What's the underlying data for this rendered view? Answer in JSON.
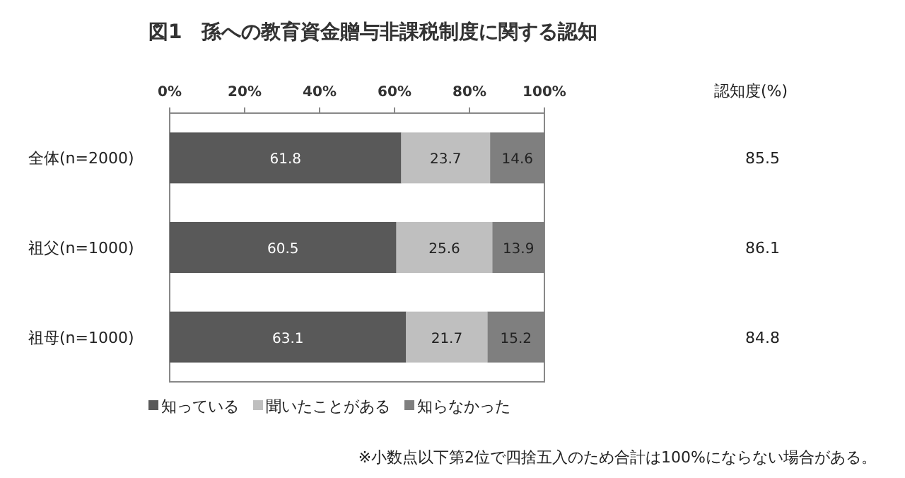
{
  "chart_data": {
    "type": "bar",
    "orientation": "horizontal",
    "stacked": true,
    "title": "図1　孫への教育資金贈与非課税制度に関する認知",
    "categories": [
      "全体(n=2000)",
      "祖父(n=1000)",
      "祖母(n=1000)"
    ],
    "series": [
      {
        "name": "知っている",
        "color": "#595959",
        "values": [
          61.8,
          60.5,
          63.1
        ]
      },
      {
        "name": "聞いたことがある",
        "color": "#bfbfbf",
        "values": [
          23.7,
          25.6,
          21.7
        ]
      },
      {
        "name": "知らなかった",
        "color": "#7f7f7f",
        "values": [
          14.6,
          13.9,
          15.2
        ]
      }
    ],
    "xlim": [
      0,
      100
    ],
    "xticks": [
      {
        "value": 0,
        "label": "0%"
      },
      {
        "value": 20,
        "label": "20%"
      },
      {
        "value": 40,
        "label": "40%"
      },
      {
        "value": 60,
        "label": "60%"
      },
      {
        "value": 80,
        "label": "80%"
      },
      {
        "value": 100,
        "label": "100%"
      }
    ],
    "data_labels": true,
    "legend": "bottom",
    "grid": false,
    "annotations": [
      "認知度(%)",
      "85.5",
      "86.1",
      "84.8",
      "※小数点以下第2位で四捨五入のため合計は100%にならない場合がある。"
    ]
  }
}
